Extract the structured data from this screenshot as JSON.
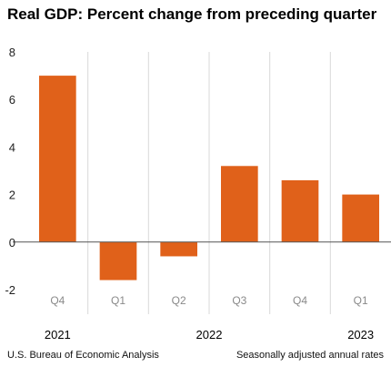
{
  "chart_data": {
    "type": "bar",
    "title": "Real GDP:  Percent change from preceding quarter",
    "categories": [
      "Q4",
      "Q1",
      "Q2",
      "Q3",
      "Q4",
      "Q1"
    ],
    "series": [
      {
        "values": [
          7.0,
          -1.6,
          -0.6,
          3.2,
          2.6,
          2.0
        ]
      }
    ],
    "years": [
      {
        "label": "2021",
        "categories": [
          0
        ]
      },
      {
        "label": "2022",
        "categories": [
          1,
          2,
          3,
          4
        ]
      },
      {
        "label": "2023",
        "categories": [
          5
        ]
      }
    ],
    "yticks": [
      -2,
      0,
      2,
      4,
      6,
      8
    ],
    "ylim": [
      -2,
      8
    ],
    "xlabel": "",
    "ylabel": "",
    "grid": false,
    "bar_color": "#e0611a"
  },
  "footer": {
    "source": "U.S. Bureau of Economic Analysis",
    "note": "Seasonally adjusted annual rates"
  }
}
